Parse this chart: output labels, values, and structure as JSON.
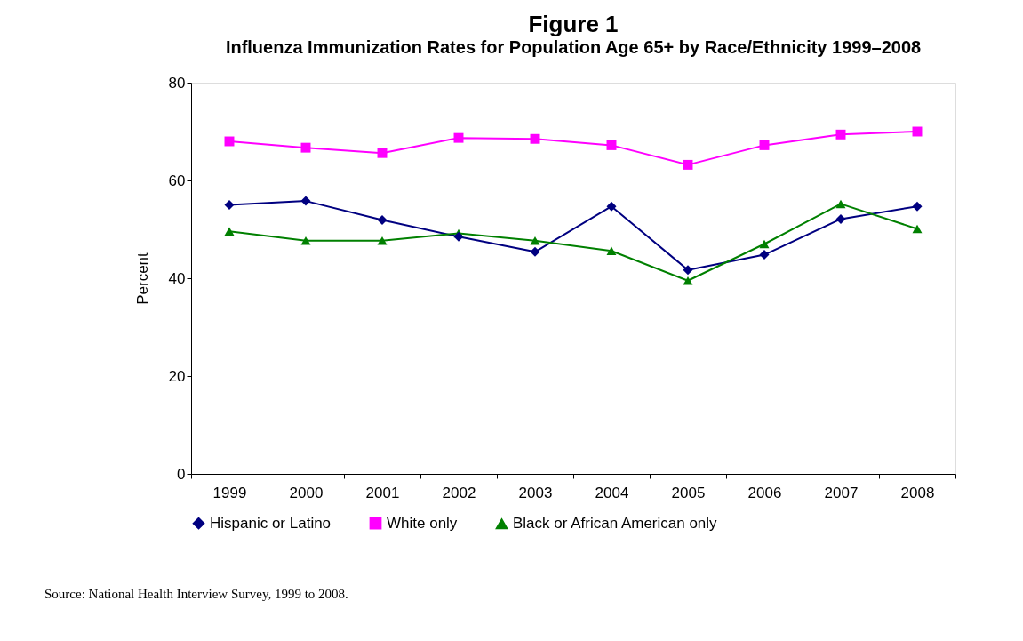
{
  "chart_data": {
    "type": "line",
    "title": "Figure 1",
    "subtitle": "Influenza Immunization Rates for Population Age 65+ by Race/Ethnicity 1999–2008",
    "ylabel": "Percent",
    "categories": [
      "1999",
      "2000",
      "2001",
      "2002",
      "2003",
      "2004",
      "2005",
      "2006",
      "2007",
      "2008"
    ],
    "series": [
      {
        "name": "Hispanic or Latino",
        "color": "#000080",
        "marker": "diamond",
        "values": [
          55.0,
          55.8,
          51.9,
          48.5,
          45.4,
          54.7,
          41.7,
          44.8,
          52.1,
          54.7
        ]
      },
      {
        "name": "White only",
        "color": "#ff00ff",
        "marker": "square",
        "values": [
          68.0,
          66.7,
          65.6,
          68.7,
          68.5,
          67.2,
          63.2,
          67.2,
          69.4,
          70.0
        ]
      },
      {
        "name": "Black or African American only",
        "color": "#008000",
        "marker": "triangle",
        "values": [
          49.6,
          47.7,
          47.7,
          49.2,
          47.7,
          45.6,
          39.5,
          47.0,
          55.2,
          50.1
        ]
      }
    ],
    "ylim": [
      0,
      80
    ],
    "yticks": [
      0,
      20,
      40,
      60,
      80
    ],
    "grid": false,
    "legend": "bottom",
    "line_style": "solid",
    "annotations": [
      "Source: National Health Interview Survey, 1999 to 2008."
    ]
  }
}
